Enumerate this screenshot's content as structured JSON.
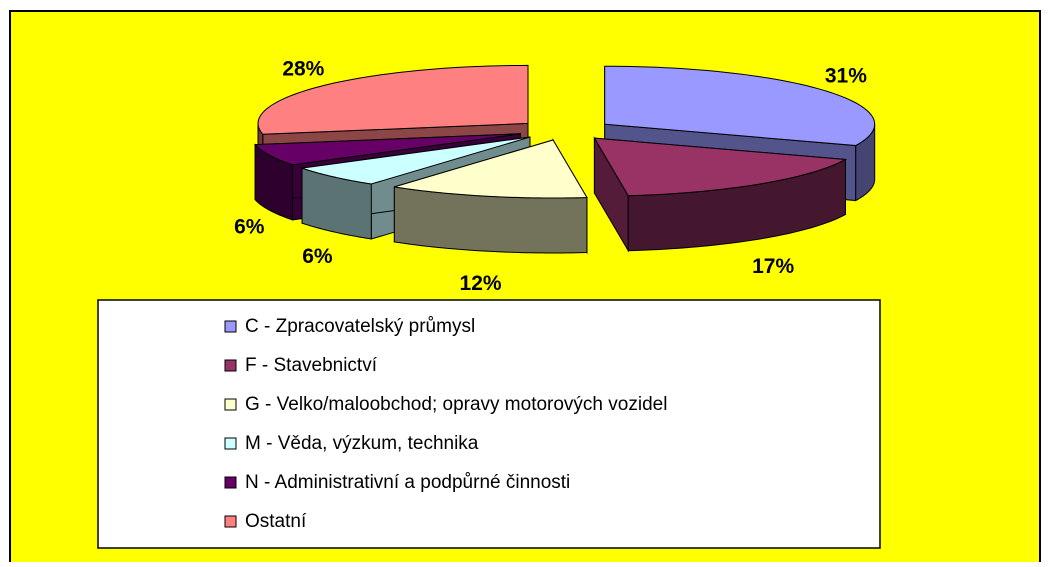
{
  "chart_data": {
    "type": "pie3d",
    "categories": [
      "C - Zpracovatelský průmysl",
      "F - Stavebnictví",
      "G - Velko/maloobchod; opravy motorových vozidel",
      "M - Věda, výzkum, technika",
      "N - Administrativní a podpůrné činnosti",
      "Ostatní"
    ],
    "values": [
      31,
      17,
      12,
      6,
      6,
      28
    ],
    "value_labels": [
      "31%",
      "17%",
      "12%",
      "6%",
      "6%",
      "28%"
    ],
    "colors": [
      "#9999ff",
      "#993366",
      "#ffffcc",
      "#ccffff",
      "#660066",
      "#ff8080"
    ],
    "background": "#ffff00"
  }
}
